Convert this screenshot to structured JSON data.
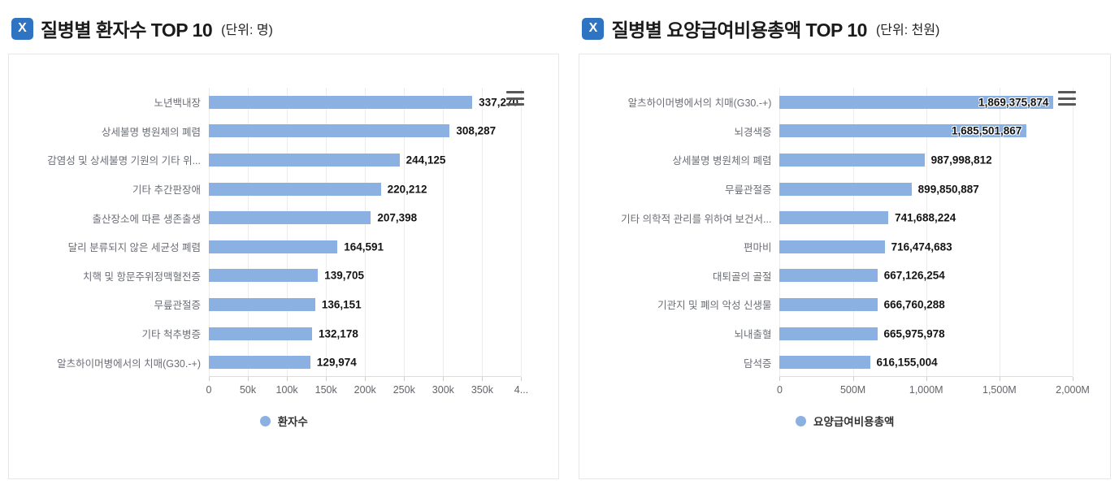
{
  "icons": {
    "title_badge": "x-logo-icon",
    "title_badge_glyph": "X",
    "chart_menu": "hamburger-menu-icon",
    "legend_marker": "circle"
  },
  "colors": {
    "bar_blue": "#8bb0e2",
    "title_icon_bg": "#2e74c3",
    "card_border": "#e7e7e7"
  },
  "chart_data": [
    {
      "type": "bar",
      "orientation": "horizontal",
      "title": "질병별 환자수 TOP 10",
      "unit_label": "(단위: 명)",
      "series_name": "환자수",
      "legend_position": "bottom",
      "grid": true,
      "bar_color": "#8bb0e2",
      "categories": [
        "노년백내장",
        "상세불명 병원체의 폐렴",
        "감염성 및 상세불명 기원의 기타 위...",
        "기타 추간판장애",
        "출산장소에 따른 생존출생",
        "달리 분류되지 않은 세균성 폐렴",
        "치핵 및 항문주위정맥혈전증",
        "무릎관절증",
        "기타 척추병증",
        "알츠하이머병에서의 치매(G30.-+)"
      ],
      "values": [
        337270,
        308287,
        244125,
        220212,
        207398,
        164591,
        139705,
        136151,
        132178,
        129974
      ],
      "value_labels": [
        "337,270",
        "308,287",
        "244,125",
        "220,212",
        "207,398",
        "164,591",
        "139,705",
        "136,151",
        "132,178",
        "129,974"
      ],
      "xlim": [
        0,
        400000
      ],
      "x_ticks": [
        "0",
        "50k",
        "100k",
        "150k",
        "200k",
        "250k",
        "300k",
        "350k",
        "4..."
      ]
    },
    {
      "type": "bar",
      "orientation": "horizontal",
      "title": "질병별 요양급여비용총액 TOP 10",
      "unit_label": "(단위: 천원)",
      "series_name": "요양급여비용총액",
      "legend_position": "bottom",
      "grid": true,
      "bar_color": "#8bb0e2",
      "categories": [
        "알츠하이머병에서의 치매(G30.-+)",
        "뇌경색증",
        "상세불명 병원체의 폐렴",
        "무릎관절증",
        "기타 의학적 관리를 위하여 보건서...",
        "편마비",
        "대퇴골의 골절",
        "기관지 및 폐의 악성 신생물",
        "뇌내출혈",
        "담석증"
      ],
      "values": [
        1869375874,
        1685501867,
        987998812,
        899850887,
        741688224,
        716474683,
        667126254,
        666760288,
        665975978,
        616155004
      ],
      "value_labels": [
        "1,869,375,874",
        "1,685,501,867",
        "987,998,812",
        "899,850,887",
        "741,688,224",
        "716,474,683",
        "667,126,254",
        "666,760,288",
        "665,975,978",
        "616,155,004"
      ],
      "xlim": [
        0,
        2000000000
      ],
      "x_ticks": [
        "0",
        "500M",
        "1,000M",
        "1,500M",
        "2,000M"
      ]
    }
  ]
}
